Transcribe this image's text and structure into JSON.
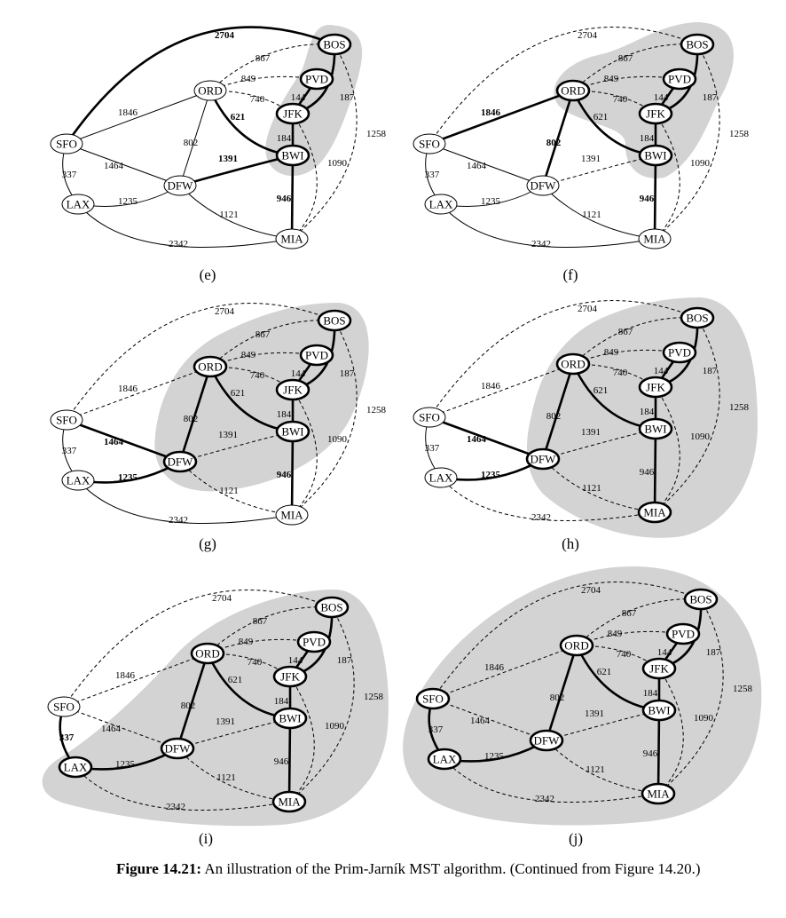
{
  "figure": {
    "nodes": [
      {
        "id": "BOS",
        "label": "BOS"
      },
      {
        "id": "PVD",
        "label": "PVD"
      },
      {
        "id": "ORD",
        "label": "ORD"
      },
      {
        "id": "JFK",
        "label": "JFK"
      },
      {
        "id": "SFO",
        "label": "SFO"
      },
      {
        "id": "BWI",
        "label": "BWI"
      },
      {
        "id": "DFW",
        "label": "DFW"
      },
      {
        "id": "LAX",
        "label": "LAX"
      },
      {
        "id": "MIA",
        "label": "MIA"
      }
    ],
    "edges": [
      {
        "id": "SFO-BOS",
        "u": "SFO",
        "v": "BOS",
        "w": "2704"
      },
      {
        "id": "ORD-BOS",
        "u": "ORD",
        "v": "BOS",
        "w": "867"
      },
      {
        "id": "ORD-PVD",
        "u": "ORD",
        "v": "PVD",
        "w": "849"
      },
      {
        "id": "ORD-JFK",
        "u": "ORD",
        "v": "JFK",
        "w": "740"
      },
      {
        "id": "JFK-PVD",
        "u": "JFK",
        "v": "PVD",
        "w": "144"
      },
      {
        "id": "JFK-BOS",
        "u": "JFK",
        "v": "BOS",
        "w": "187"
      },
      {
        "id": "ORD-BWI",
        "u": "ORD",
        "v": "BWI",
        "w": "621"
      },
      {
        "id": "SFO-ORD",
        "u": "SFO",
        "v": "ORD",
        "w": "1846"
      },
      {
        "id": "ORD-DFW",
        "u": "ORD",
        "v": "DFW",
        "w": "802"
      },
      {
        "id": "JFK-BWI",
        "u": "JFK",
        "v": "BWI",
        "w": "184"
      },
      {
        "id": "BOS-MIA",
        "u": "BOS",
        "v": "MIA",
        "w": "1258"
      },
      {
        "id": "SFO-DFW",
        "u": "SFO",
        "v": "DFW",
        "w": "1464"
      },
      {
        "id": "DFW-BWI",
        "u": "DFW",
        "v": "BWI",
        "w": "1391"
      },
      {
        "id": "JFK-MIA",
        "u": "JFK",
        "v": "MIA",
        "w": "1090"
      },
      {
        "id": "SFO-LAX",
        "u": "SFO",
        "v": "LAX",
        "w": "337"
      },
      {
        "id": "LAX-DFW",
        "u": "LAX",
        "v": "DFW",
        "w": "1235"
      },
      {
        "id": "BWI-MIA",
        "u": "BWI",
        "v": "MIA",
        "w": "946"
      },
      {
        "id": "DFW-MIA",
        "u": "DFW",
        "v": "MIA",
        "w": "1121"
      },
      {
        "id": "LAX-MIA",
        "u": "LAX",
        "v": "MIA",
        "w": "2342"
      }
    ],
    "panels": [
      {
        "label": "(e)",
        "tree_nodes": [
          "BOS",
          "PVD",
          "JFK",
          "BWI"
        ],
        "tree_edges": [
          "JFK-PVD",
          "JFK-BOS",
          "JFK-BWI"
        ],
        "candidate_edges": [
          "SFO-BOS",
          "ORD-BWI",
          "DFW-BWI",
          "BWI-MIA"
        ],
        "dashed_edges": [
          "ORD-BOS",
          "ORD-PVD",
          "ORD-JFK",
          "BOS-MIA",
          "JFK-MIA"
        ],
        "bold_weights": [
          "2704",
          "621",
          "1391",
          "946"
        ]
      },
      {
        "label": "(f)",
        "tree_nodes": [
          "BOS",
          "PVD",
          "ORD",
          "JFK",
          "BWI"
        ],
        "tree_edges": [
          "JFK-PVD",
          "JFK-BOS",
          "JFK-BWI",
          "ORD-BWI"
        ],
        "candidate_edges": [
          "SFO-ORD",
          "ORD-DFW",
          "BWI-MIA"
        ],
        "dashed_edges": [
          "SFO-BOS",
          "ORD-BOS",
          "ORD-PVD",
          "ORD-JFK",
          "BOS-MIA",
          "DFW-BWI",
          "JFK-MIA"
        ],
        "bold_weights": [
          "1846",
          "802",
          "946"
        ]
      },
      {
        "label": "(g)",
        "tree_nodes": [
          "BOS",
          "PVD",
          "ORD",
          "JFK",
          "BWI",
          "DFW"
        ],
        "tree_edges": [
          "JFK-PVD",
          "JFK-BOS",
          "JFK-BWI",
          "ORD-BWI",
          "ORD-DFW"
        ],
        "candidate_edges": [
          "SFO-DFW",
          "LAX-DFW",
          "BWI-MIA"
        ],
        "dashed_edges": [
          "SFO-BOS",
          "ORD-BOS",
          "ORD-PVD",
          "ORD-JFK",
          "SFO-ORD",
          "BOS-MIA",
          "DFW-BWI",
          "JFK-MIA",
          "DFW-MIA"
        ],
        "bold_weights": [
          "1464",
          "1235",
          "946"
        ]
      },
      {
        "label": "(h)",
        "tree_nodes": [
          "BOS",
          "PVD",
          "ORD",
          "JFK",
          "BWI",
          "DFW",
          "MIA"
        ],
        "tree_edges": [
          "JFK-PVD",
          "JFK-BOS",
          "JFK-BWI",
          "ORD-BWI",
          "ORD-DFW",
          "BWI-MIA"
        ],
        "candidate_edges": [
          "SFO-DFW",
          "LAX-DFW"
        ],
        "dashed_edges": [
          "SFO-BOS",
          "ORD-BOS",
          "ORD-PVD",
          "ORD-JFK",
          "SFO-ORD",
          "BOS-MIA",
          "DFW-BWI",
          "JFK-MIA",
          "DFW-MIA",
          "LAX-MIA"
        ],
        "bold_weights": [
          "1464",
          "1235"
        ]
      },
      {
        "label": "(i)",
        "tree_nodes": [
          "BOS",
          "PVD",
          "ORD",
          "JFK",
          "BWI",
          "DFW",
          "MIA",
          "LAX"
        ],
        "tree_edges": [
          "JFK-PVD",
          "JFK-BOS",
          "JFK-BWI",
          "ORD-BWI",
          "ORD-DFW",
          "BWI-MIA",
          "LAX-DFW"
        ],
        "candidate_edges": [
          "SFO-LAX"
        ],
        "dashed_edges": [
          "SFO-BOS",
          "ORD-BOS",
          "ORD-PVD",
          "ORD-JFK",
          "SFO-ORD",
          "BOS-MIA",
          "DFW-BWI",
          "JFK-MIA",
          "DFW-MIA",
          "LAX-MIA",
          "SFO-DFW"
        ],
        "bold_weights": [
          "337"
        ]
      },
      {
        "label": "(j)",
        "tree_nodes": [
          "BOS",
          "PVD",
          "ORD",
          "JFK",
          "BWI",
          "DFW",
          "MIA",
          "LAX",
          "SFO"
        ],
        "tree_edges": [
          "JFK-PVD",
          "JFK-BOS",
          "JFK-BWI",
          "ORD-BWI",
          "ORD-DFW",
          "BWI-MIA",
          "LAX-DFW",
          "SFO-LAX"
        ],
        "candidate_edges": [],
        "dashed_edges": [
          "SFO-BOS",
          "ORD-BOS",
          "ORD-PVD",
          "ORD-JFK",
          "SFO-ORD",
          "BOS-MIA",
          "DFW-BWI",
          "JFK-MIA",
          "DFW-MIA",
          "LAX-MIA",
          "SFO-DFW"
        ],
        "bold_weights": []
      }
    ]
  },
  "caption": {
    "label": "Figure 14.21:",
    "text": " An illustration of the Prim-Jarník MST algorithm. (Continued from Figure 14.20.)"
  }
}
